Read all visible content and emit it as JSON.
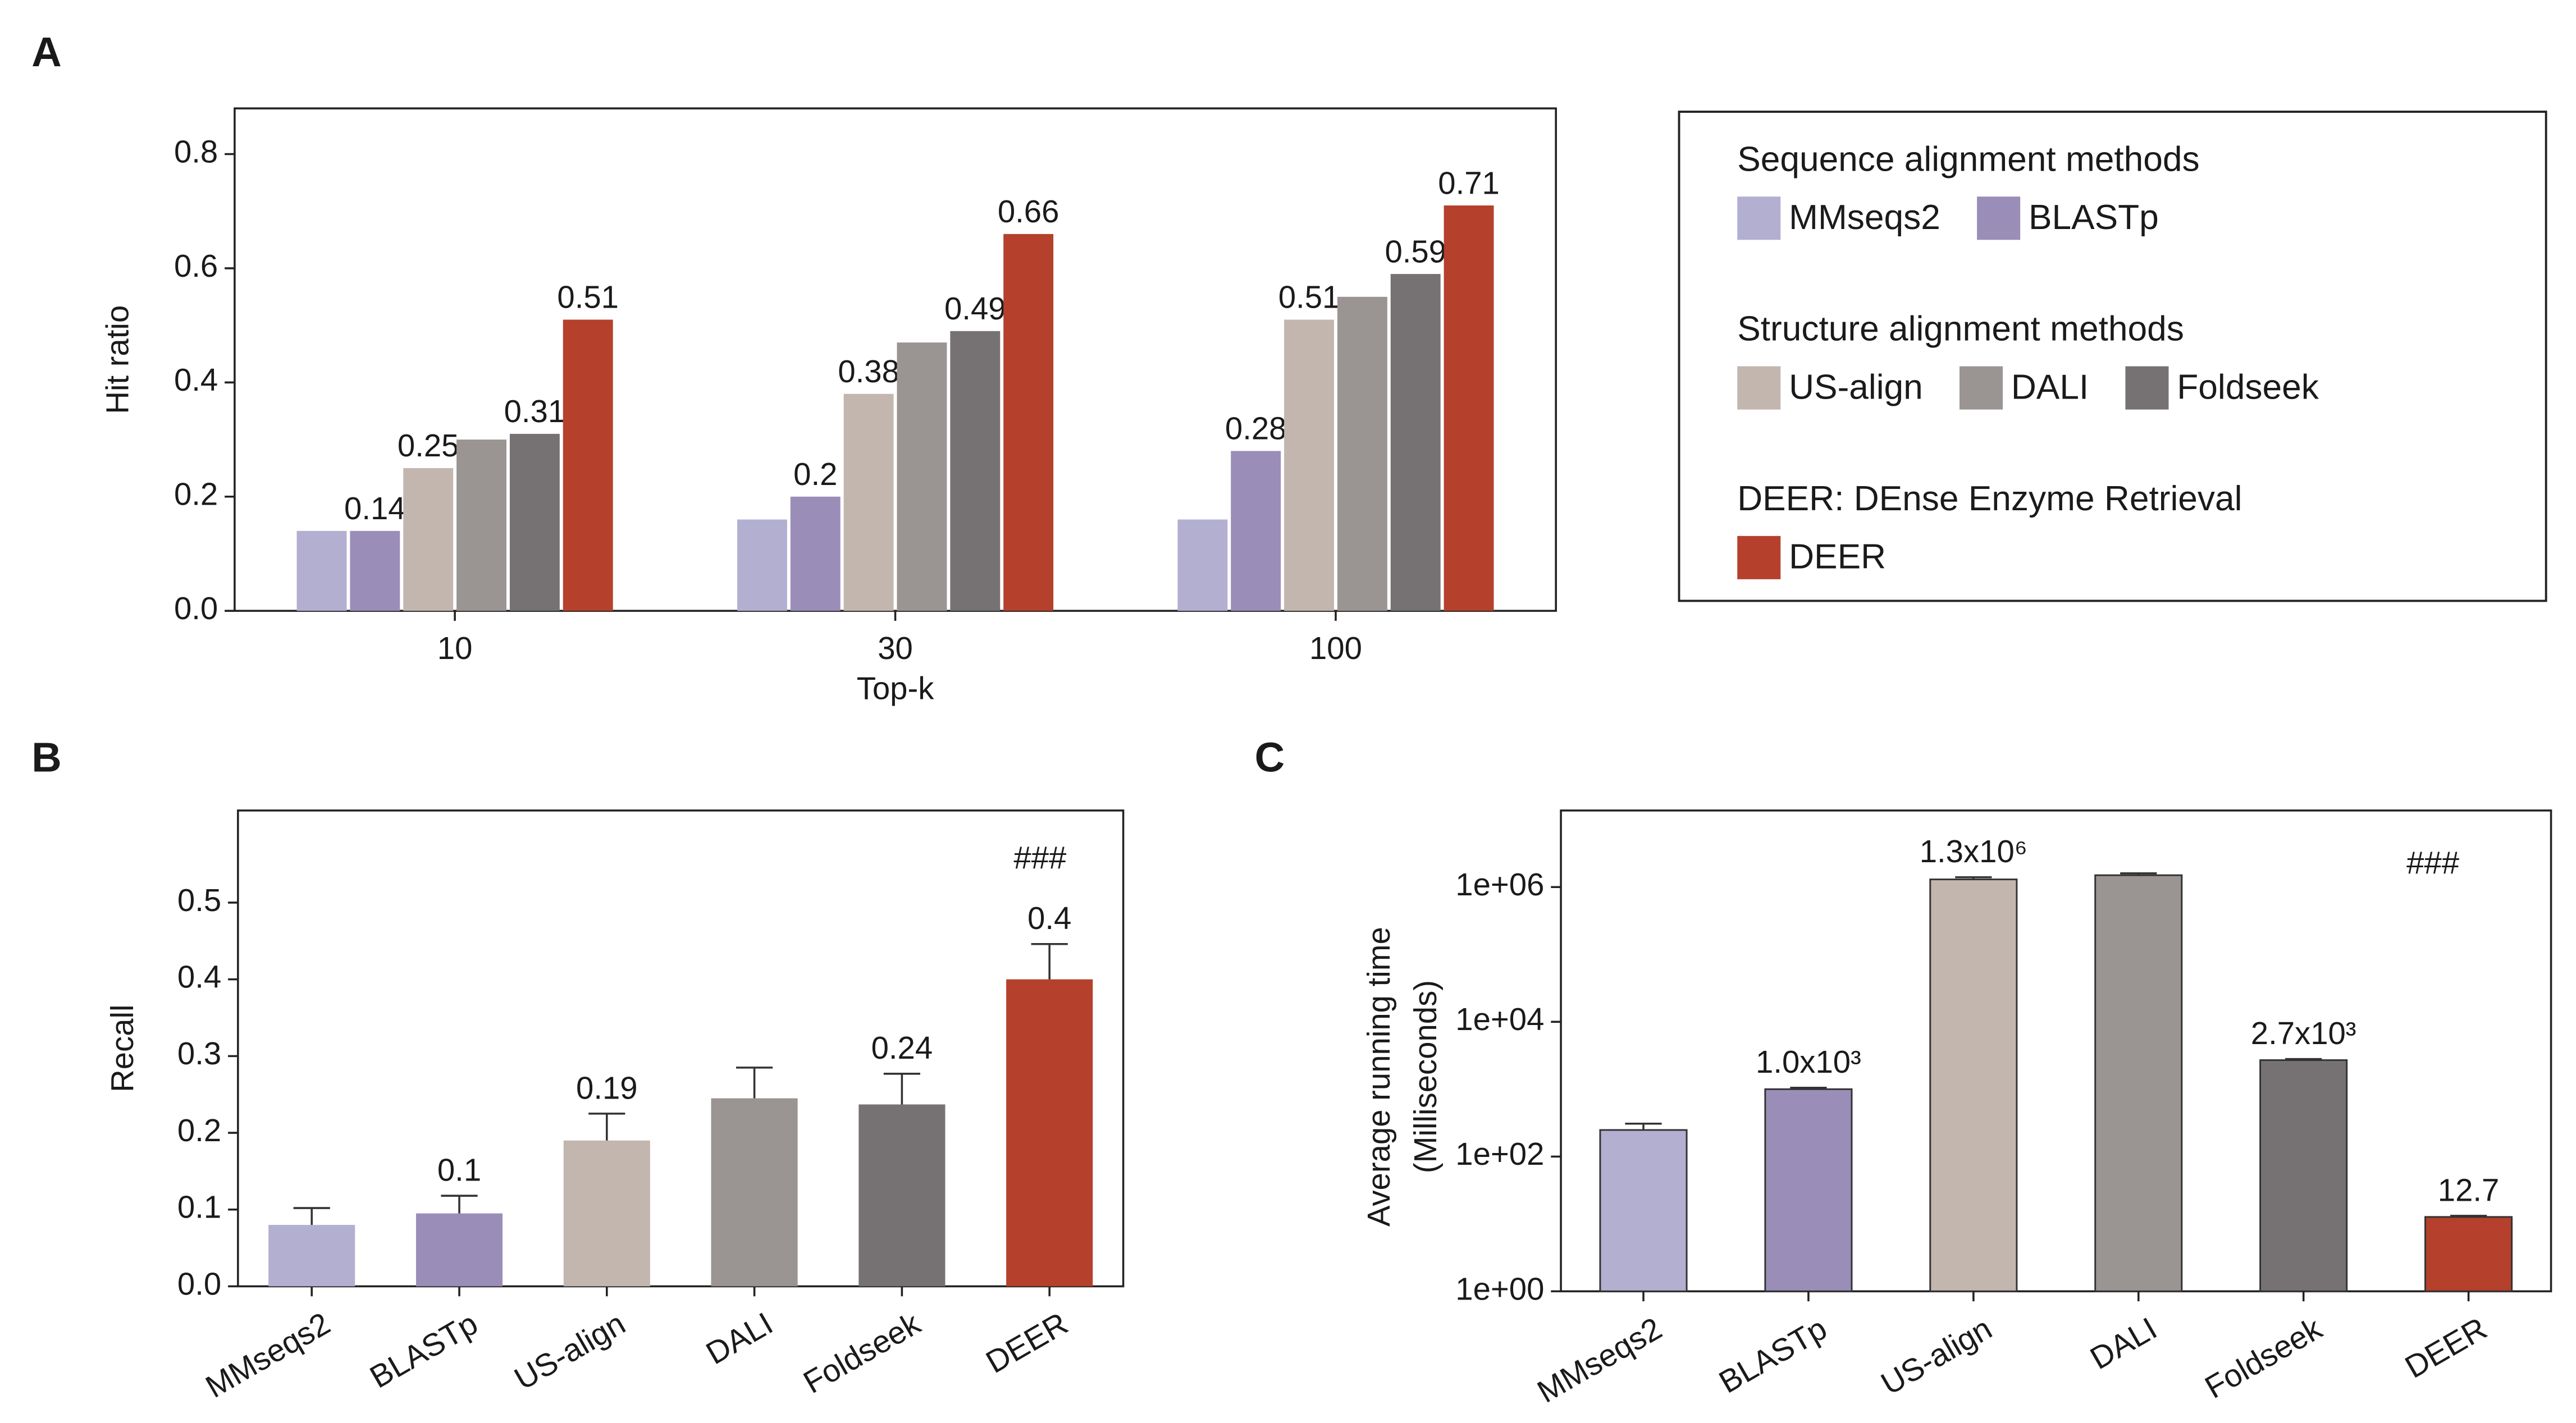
{
  "chart_data": [
    {
      "type": "grouped-bar",
      "panel": "A",
      "xlabel": "Top-k",
      "ylabel": "Hit ratio",
      "categories": [
        "10",
        "30",
        "100"
      ],
      "ylim": [
        0,
        0.88
      ],
      "yticks": [
        {
          "value": 0,
          "label": "0.0"
        },
        0.2,
        0.4,
        0.6,
        0.8
      ],
      "series": [
        {
          "name": "MMseqs2",
          "group": "Sequence alignment methods",
          "color": "#b3afd1",
          "values": [
            0.14,
            0.16,
            0.16
          ],
          "value_labels": [
            null,
            null,
            null
          ]
        },
        {
          "name": "BLASTp",
          "group": "Sequence alignment methods",
          "color": "#9a8eb8",
          "values": [
            0.14,
            0.2,
            0.28
          ],
          "value_labels": [
            "0.14",
            "0.2",
            "0.28"
          ]
        },
        {
          "name": "US-align",
          "group": "Structure alignment methods",
          "color": "#c2b6ae",
          "values": [
            0.25,
            0.38,
            0.51
          ],
          "value_labels": [
            "0.25",
            "0.38",
            "0.51"
          ]
        },
        {
          "name": "DALI",
          "group": "Structure alignment methods",
          "color": "#9a9593",
          "values": [
            0.3,
            0.47,
            0.55
          ],
          "value_labels": [
            null,
            null,
            null
          ]
        },
        {
          "name": "Foldseek",
          "group": "Structure alignment methods",
          "color": "#767274",
          "values": [
            0.31,
            0.49,
            0.59
          ],
          "value_labels": [
            "0.31",
            "0.49",
            "0.59"
          ]
        },
        {
          "name": "DEER",
          "group": "DEER: DEnse Enzyme Retrieval",
          "color": "#b5402c",
          "values": [
            0.51,
            0.66,
            0.71
          ],
          "value_labels": [
            "0.51",
            "0.66",
            "0.71"
          ]
        }
      ]
    },
    {
      "type": "bar",
      "panel": "B",
      "ylabel": "Recall",
      "categories": [
        "MMseqs2",
        "BLASTp",
        "US-align",
        "DALI",
        "Foldseek",
        "DEER"
      ],
      "colors": [
        "#b3afd1",
        "#9a8eb8",
        "#c2b6ae",
        "#9a9593",
        "#767274",
        "#b5402c"
      ],
      "values": [
        0.08,
        0.095,
        0.19,
        0.245,
        0.237,
        0.4
      ],
      "errors": [
        0.022,
        0.023,
        0.035,
        0.04,
        0.04,
        0.046
      ],
      "value_labels": [
        null,
        "0.1",
        "0.19",
        null,
        "0.24",
        "0.4"
      ],
      "annotation": "###",
      "ylim": [
        0,
        0.62
      ],
      "yticks": [
        {
          "value": 0,
          "label": "0.0"
        },
        0.1,
        0.2,
        0.3,
        0.4,
        0.5
      ]
    },
    {
      "type": "bar",
      "panel": "C",
      "ylabel": [
        "Average running time",
        "(Milliseconds)"
      ],
      "log_y": true,
      "categories": [
        "MMseqs2",
        "BLASTp",
        "US-align",
        "DALI",
        "Foldseek",
        "DEER"
      ],
      "colors": [
        "#b3afd1",
        "#9a8eb8",
        "#c2b6ae",
        "#9a9593",
        "#767274",
        "#b5402c"
      ],
      "values": [
        248,
        1000,
        1300000,
        1500000,
        2700,
        12.7
      ],
      "errors": [
        60,
        50,
        100000,
        100000,
        100,
        0.5
      ],
      "value_labels": [
        null,
        "1.0x10³",
        "1.3x10⁶",
        null,
        "2.7x10³",
        "12.7"
      ],
      "annotation": "###",
      "ylim": [
        1,
        13700000
      ],
      "yticks": [
        {
          "value": 1,
          "label": "1e+00"
        },
        {
          "value": 100,
          "label": "1e+02"
        },
        {
          "value": 10000,
          "label": "1e+04"
        },
        {
          "value": 1000000,
          "label": "1e+06"
        }
      ]
    }
  ]
}
